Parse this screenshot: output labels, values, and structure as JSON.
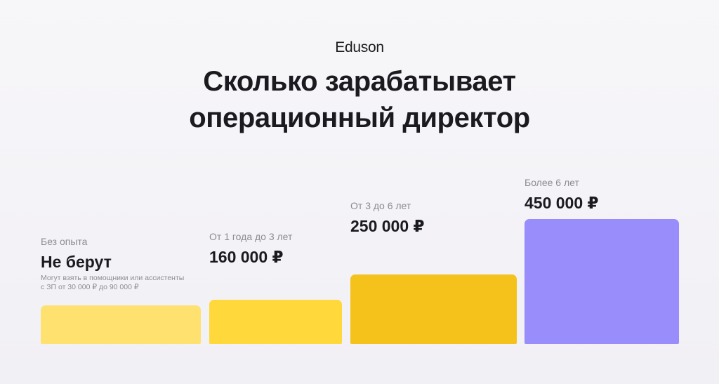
{
  "brand": "Eduson",
  "title_lines": [
    "Сколько зарабатывает",
    "операционный директор"
  ],
  "chart_data": {
    "type": "bar",
    "title": "Сколько зарабатывает операционный директор",
    "unit": "₽",
    "categories": [
      "Без опыта",
      "От 1 года до 3 лет",
      "От 3 до 6 лет",
      "Более 6 лет"
    ],
    "value_labels": [
      "Не берут",
      "160 000 ₽",
      "250 000 ₽",
      "450 000 ₽"
    ],
    "values": [
      null,
      160000,
      250000,
      450000
    ],
    "note_lines": [
      "Могут взять в помощники или ассистенты",
      "с ЗП от 30 000 ₽ до 90 000 ₽"
    ],
    "colors": [
      "#ffe170",
      "#ffd83b",
      "#f4c21a",
      "#988dfb"
    ]
  }
}
